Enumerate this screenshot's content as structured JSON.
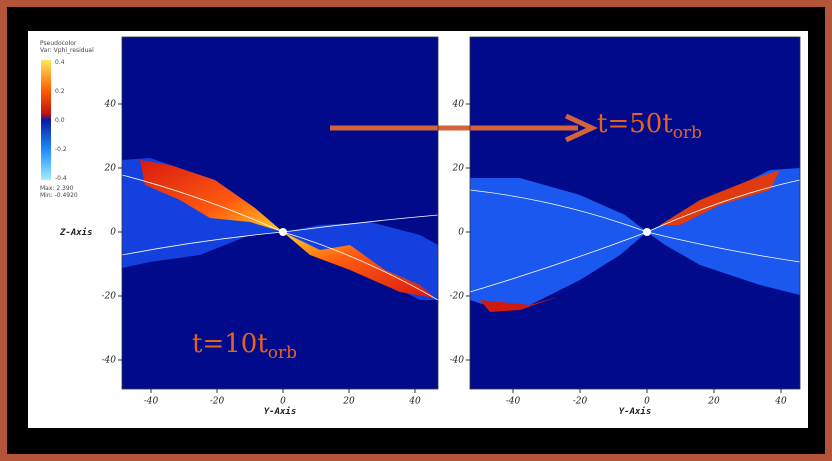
{
  "colorbar": {
    "title": "Pseudocolor",
    "variable": "Var: Vphi_residual",
    "ticks": [
      "0.4",
      "0.2",
      "0.0",
      "-0.2",
      "-0.4"
    ],
    "max": "Max: 2.390",
    "min": "Min: -0.4920"
  },
  "panels": [
    {
      "ylabel": "Z-Axis",
      "xlabel": "Y-Axis",
      "xticks": [
        -40,
        -20,
        0,
        20,
        40
      ],
      "yticks": [
        40,
        20,
        0,
        -20,
        -40
      ],
      "annotation": {
        "main": "t=10t",
        "sub": "orb"
      }
    },
    {
      "xlabel": "Y-Axis",
      "xticks": [
        -40,
        -20,
        0,
        20,
        40
      ],
      "yticks": [
        40,
        20,
        0,
        -20,
        -40
      ],
      "annotation": {
        "main": "t=50t",
        "sub": "orb"
      }
    }
  ]
}
